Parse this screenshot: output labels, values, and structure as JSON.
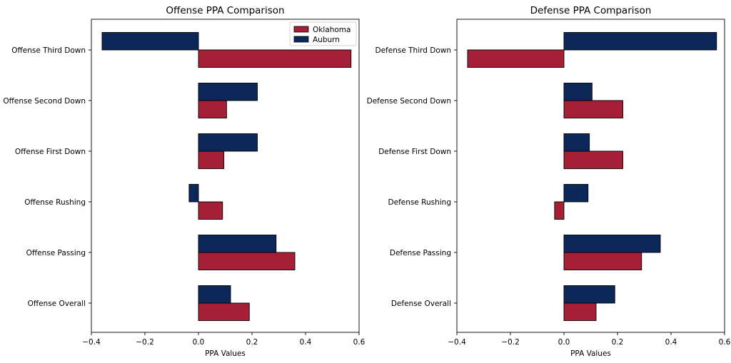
{
  "chart_data": [
    {
      "type": "bar",
      "orientation": "horizontal",
      "title": "Offense PPA Comparison",
      "xlabel": "PPA Values",
      "ylabel": "",
      "xlim": [
        -0.4,
        0.6
      ],
      "xticks": [
        "−0.4",
        "−0.2",
        "0.0",
        "0.2",
        "0.4",
        "0.6"
      ],
      "xtick_values": [
        -0.4,
        -0.2,
        0.0,
        0.2,
        0.4,
        0.6
      ],
      "categories": [
        "Offense Overall",
        "Offense Passing",
        "Offense Rushing",
        "Offense First Down",
        "Offense Second Down",
        "Offense Third Down"
      ],
      "series": [
        {
          "name": "Oklahoma",
          "color": "#a51f37",
          "values": [
            0.19,
            0.36,
            0.09,
            0.095,
            0.105,
            0.57
          ]
        },
        {
          "name": "Auburn",
          "color": "#0c2859",
          "values": [
            0.12,
            0.29,
            -0.035,
            0.22,
            0.22,
            -0.36
          ]
        }
      ],
      "legend": "top-right",
      "grid": false
    },
    {
      "type": "bar",
      "orientation": "horizontal",
      "title": "Defense PPA Comparison",
      "xlabel": "PPA Values",
      "ylabel": "",
      "xlim": [
        -0.4,
        0.6
      ],
      "xticks": [
        "−0.4",
        "−0.2",
        "0.0",
        "0.2",
        "0.4",
        "0.6"
      ],
      "xtick_values": [
        -0.4,
        -0.2,
        0.0,
        0.2,
        0.4,
        0.6
      ],
      "categories": [
        "Defense Overall",
        "Defense Passing",
        "Defense Rushing",
        "Defense First Down",
        "Defense Second Down",
        "Defense Third Down"
      ],
      "series": [
        {
          "name": "Oklahoma",
          "color": "#a51f37",
          "values": [
            0.12,
            0.29,
            -0.035,
            0.22,
            0.22,
            -0.36
          ]
        },
        {
          "name": "Auburn",
          "color": "#0c2859",
          "values": [
            0.19,
            0.36,
            0.09,
            0.095,
            0.105,
            0.57
          ]
        }
      ],
      "grid": false
    }
  ]
}
